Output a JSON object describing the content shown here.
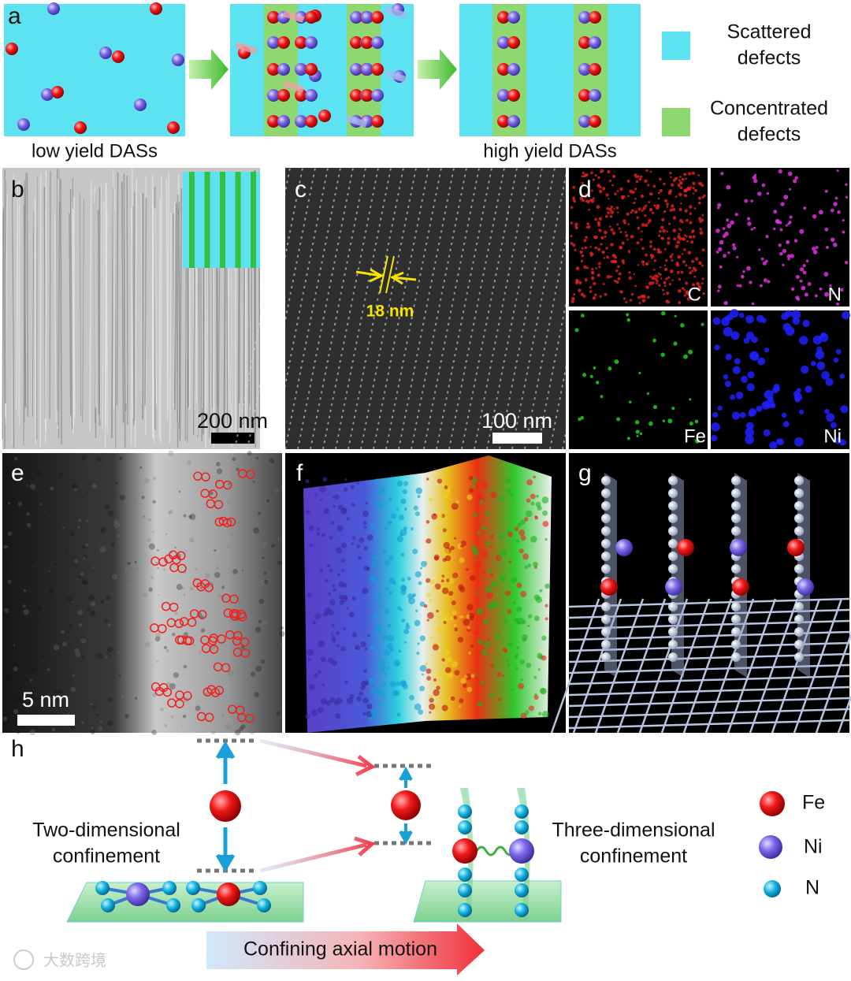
{
  "panels": {
    "a": {
      "label": "a",
      "left_caption": "low yield DASs",
      "right_caption": "high yield DASs",
      "legend": [
        {
          "lines": [
            "Scattered",
            "defects"
          ]
        },
        {
          "lines": [
            "Concentrated",
            "defects"
          ]
        }
      ]
    },
    "b": {
      "label": "b",
      "scale_bar": "200 nm"
    },
    "c": {
      "label": "c",
      "spacing": "18 nm",
      "scale_bar": "100 nm"
    },
    "d": {
      "label": "d",
      "maps": [
        "C",
        "N",
        "Fe",
        "Ni"
      ]
    },
    "e": {
      "label": "e",
      "scale_bar": "5 nm"
    },
    "f": {
      "label": "f"
    },
    "g": {
      "label": "g"
    },
    "h": {
      "label": "h",
      "left_text": [
        "Two-dimensional",
        "confinement"
      ],
      "right_text": [
        "Three-dimensional",
        "confinement"
      ],
      "arrow_text": "Confining axial motion",
      "legend": [
        "Fe",
        "Ni",
        "N"
      ]
    }
  },
  "watermark": "大数跨境"
}
